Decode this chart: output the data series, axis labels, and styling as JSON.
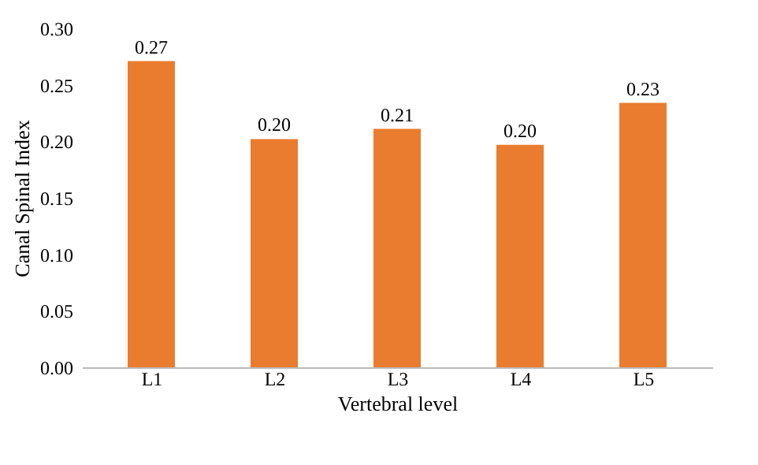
{
  "chart_data": {
    "type": "bar",
    "xlabel": "Vertebral level",
    "ylabel": "Canal Spinal Index",
    "categories": [
      "L1",
      "L2",
      "L3",
      "L4",
      "L5"
    ],
    "values": [
      0.271,
      0.202,
      0.211,
      0.197,
      0.234
    ],
    "value_labels": [
      "0.27",
      "0.20",
      "0.21",
      "0.20",
      "0.23"
    ],
    "color": "#e97c2e",
    "ylim": [
      0,
      0.3
    ],
    "yticks": [
      {
        "value": 0,
        "label": "0.00"
      },
      {
        "value": 0.05,
        "label": "0.05"
      },
      {
        "value": 0.1,
        "label": "0.10"
      },
      {
        "value": 0.15,
        "label": "0.15"
      },
      {
        "value": 0.2,
        "label": "0.20"
      },
      {
        "value": 0.25,
        "label": "0.25"
      },
      {
        "value": 0.3,
        "label": "0.30"
      }
    ],
    "grid": false
  }
}
